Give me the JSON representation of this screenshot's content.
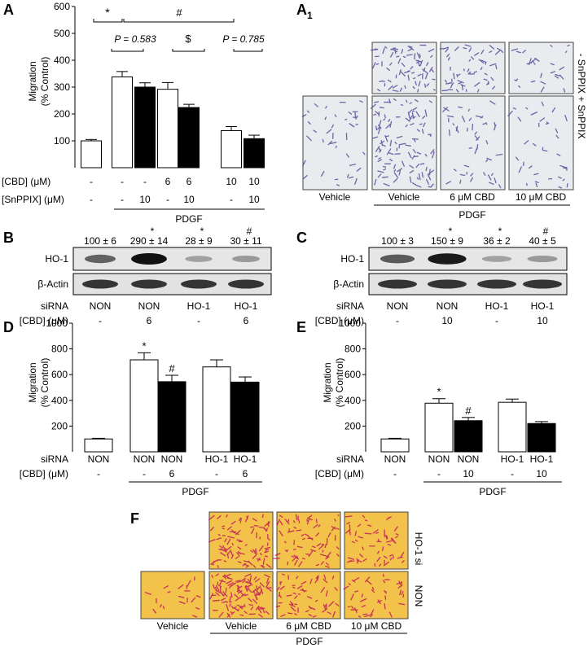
{
  "panels": {
    "A": "A",
    "A1": "A",
    "A1_sub": "1",
    "B": "B",
    "C": "C",
    "D": "D",
    "E": "E",
    "F": "F"
  },
  "chart_data": [
    {
      "id": "A",
      "type": "bar",
      "ylabel_line1": "Migration",
      "ylabel_line2": "(% Control)",
      "ylim": [
        0,
        600
      ],
      "yticks": [
        "100",
        "200",
        "300",
        "400",
        "500",
        "600"
      ],
      "values": [
        100,
        338,
        300,
        292,
        224,
        138,
        108
      ],
      "errors": [
        5,
        20,
        16,
        25,
        12,
        15,
        13
      ],
      "fills": [
        "#ffffff",
        "#ffffff",
        "#000000",
        "#ffffff",
        "#000000",
        "#ffffff",
        "#000000"
      ],
      "cbd_label": "[CBD] (μM)",
      "snppix_label": "[SnPPIX] (μM)",
      "cbd": [
        "-",
        "-",
        "-",
        "6",
        "6",
        "10",
        "10"
      ],
      "snppix": [
        "-",
        "-",
        "10",
        "-",
        "10",
        "-",
        "10"
      ],
      "group_label": "PDGF",
      "sig_star": "*",
      "sig_hash": "#",
      "p1": "P = 0.583",
      "p2": "$",
      "p3": "P = 0.785"
    },
    {
      "id": "D",
      "type": "bar",
      "ylabel_line1": "Migration",
      "ylabel_line2": "(% Control)",
      "ylim": [
        0,
        1000
      ],
      "yticks": [
        "200",
        "400",
        "600",
        "800",
        "1000"
      ],
      "values": [
        100,
        715,
        545,
        660,
        542
      ],
      "errors": [
        5,
        55,
        50,
        55,
        40
      ],
      "fills": [
        "#ffffff",
        "#ffffff",
        "#000000",
        "#ffffff",
        "#000000"
      ],
      "marks": [
        "",
        "*",
        "#",
        "",
        ""
      ],
      "sirna_label": "siRNA",
      "cbd_label": "[CBD] (μM)",
      "sirna": [
        "NON",
        "NON",
        "NON",
        "HO-1",
        "HO-1"
      ],
      "cbd": [
        "-",
        "-",
        "6",
        "-",
        "6"
      ],
      "group_label": "PDGF"
    },
    {
      "id": "E",
      "type": "bar",
      "ylabel_line1": "Migration",
      "ylabel_line2": "(% Control)",
      "ylim": [
        0,
        1000
      ],
      "yticks": [
        "200",
        "400",
        "600",
        "800",
        "1000"
      ],
      "values": [
        100,
        378,
        242,
        385,
        220
      ],
      "errors": [
        5,
        35,
        25,
        25,
        15
      ],
      "fills": [
        "#ffffff",
        "#ffffff",
        "#000000",
        "#ffffff",
        "#000000"
      ],
      "marks": [
        "",
        "*",
        "#",
        "",
        ""
      ],
      "sirna_label": "siRNA",
      "cbd_label": "[CBD] (μM)",
      "sirna": [
        "NON",
        "NON",
        "NON",
        "HO-1",
        "HO-1"
      ],
      "cbd": [
        "-",
        "-",
        "10",
        "-",
        "10"
      ],
      "group_label": "PDGF"
    }
  ],
  "blot_B": {
    "quant": [
      "100 ± 6",
      "290 ± 14",
      "28 ± 9",
      "30 ± 11"
    ],
    "marks": [
      "",
      "*",
      "*",
      "#"
    ],
    "row1": "HO-1",
    "row2": "β-Actin",
    "sirna_label": "siRNA",
    "cbd_label": "[CBD] (μM)",
    "sirna": [
      "NON",
      "NON",
      "HO-1",
      "HO-1"
    ],
    "cbd": [
      "-",
      "6",
      "-",
      "6"
    ]
  },
  "blot_C": {
    "quant": [
      "100 ± 3",
      "150 ± 9",
      "36 ± 2",
      "40 ± 5"
    ],
    "marks": [
      "",
      "*",
      "*",
      "#"
    ],
    "row1": "HO-1",
    "row2": "β-Actin",
    "sirna_label": "siRNA",
    "cbd_label": "[CBD] (μM)",
    "sirna": [
      "NON",
      "NON",
      "HO-1",
      "HO-1"
    ],
    "cbd": [
      "-",
      "10",
      "-",
      "10"
    ]
  },
  "panel_A1": {
    "row_top": "- SnPPIX + SnPPIX",
    "columns": [
      "Vehicle",
      "Vehicle",
      "6 μM CBD",
      "10 μM CBD"
    ],
    "group_label": "PDGF"
  },
  "panel_F": {
    "row_top": "HO-1 si",
    "row_bottom": "NON",
    "columns": [
      "Vehicle",
      "Vehicle",
      "6 μM CBD",
      "10 μM CBD"
    ],
    "group_label": "PDGF"
  },
  "colors": {
    "crystal_violet_bg": "#e9ecef",
    "crystal_violet_cell": "#5a4a9a",
    "hema_bg": "#f3c24a",
    "hema_cell": "#c2185b"
  }
}
